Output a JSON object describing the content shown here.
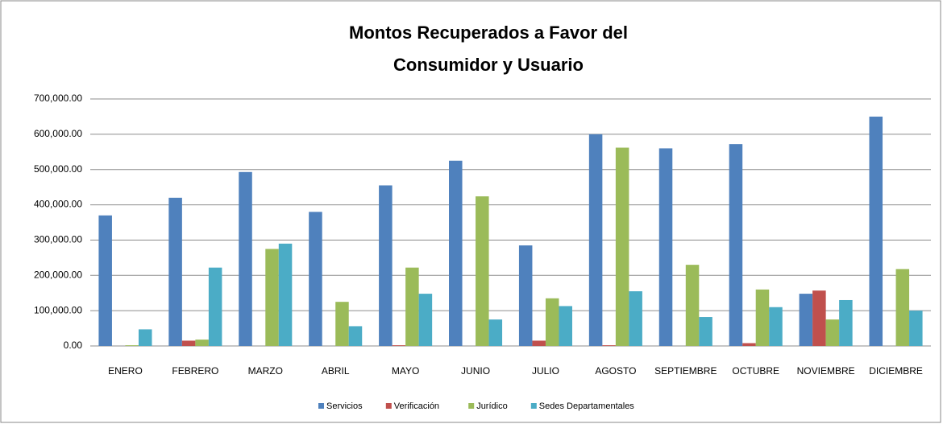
{
  "chart_data": {
    "type": "bar",
    "title": [
      "Montos Recuperados a Favor del",
      "Consumidor y  Usuario"
    ],
    "categories": [
      "ENERO",
      "FEBRERO",
      "MARZO",
      "ABRIL",
      "MAYO",
      "JUNIO",
      "JULIO",
      "AGOSTO",
      "SEPTIEMBRE",
      "OCTUBRE",
      "NOVIEMBRE",
      "DICIEMBRE"
    ],
    "series": [
      {
        "name": "Servicios",
        "color": "#4f81bd",
        "values": [
          370000,
          420000,
          493000,
          380000,
          455000,
          525000,
          285000,
          600000,
          560000,
          572000,
          148000,
          650000
        ]
      },
      {
        "name": "Verificación",
        "color": "#c0504d",
        "values": [
          0,
          15000,
          0,
          0,
          2000,
          0,
          15000,
          2000,
          0,
          8000,
          157000,
          0
        ]
      },
      {
        "name": "Jurídico",
        "color": "#9bbb59",
        "values": [
          2000,
          18000,
          275000,
          125000,
          222000,
          424000,
          135000,
          562000,
          230000,
          160000,
          75000,
          218000
        ]
      },
      {
        "name": "Sedes Departamentales",
        "color": "#4bacc6",
        "values": [
          47000,
          222000,
          290000,
          56000,
          148000,
          75000,
          113000,
          155000,
          82000,
          110000,
          130000,
          100000
        ]
      }
    ],
    "ylim": [
      0,
      700000
    ],
    "yticks": [
      {
        "value": 0,
        "label": "0.00"
      },
      {
        "value": 100000,
        "label": "100,000.00"
      },
      {
        "value": 200000,
        "label": "200,000.00"
      },
      {
        "value": 300000,
        "label": "300,000.00"
      },
      {
        "value": 400000,
        "label": "400,000.00"
      },
      {
        "value": 500000,
        "label": "500,000.00"
      },
      {
        "value": 600000,
        "label": "600,000.00"
      },
      {
        "value": 700000,
        "label": "700,000.00"
      }
    ],
    "grid": true,
    "legend": "bottom"
  }
}
